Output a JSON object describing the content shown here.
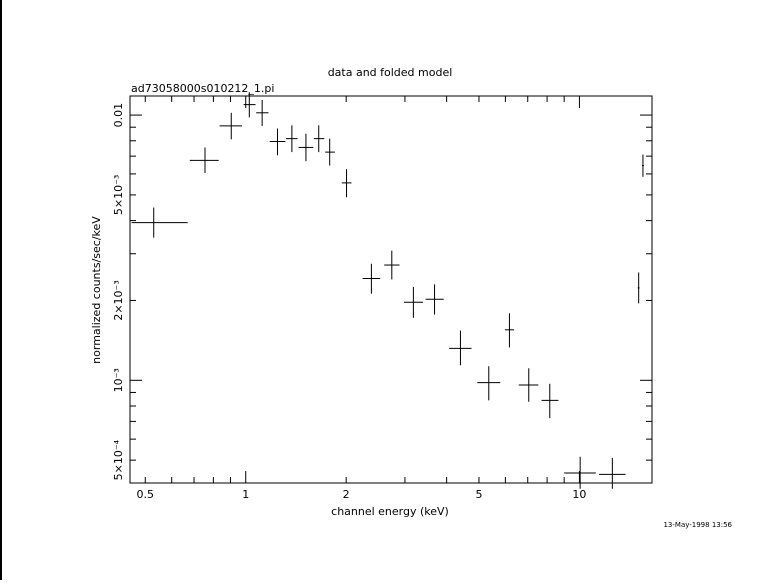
{
  "chart_data": {
    "type": "scatter",
    "title": "data and folded model",
    "subtitle": "ad73058000s010212_1.pi",
    "xlabel": "channel energy (keV)",
    "ylabel": "normalized counts/sec/keV",
    "timestamp": "13-May-1998 13:56",
    "x_scale": "log",
    "y_scale": "log",
    "xlim": [
      0.45,
      16.5
    ],
    "ylim": [
      0.00041,
      0.0118
    ],
    "x_ticks": [
      {
        "value": 0.5,
        "label": "0.5"
      },
      {
        "value": 1,
        "label": "1"
      },
      {
        "value": 2,
        "label": "2"
      },
      {
        "value": 5,
        "label": "5"
      },
      {
        "value": 10,
        "label": "10"
      }
    ],
    "y_ticks": [
      {
        "value": 0.01,
        "label": "0.01"
      },
      {
        "value": 0.005,
        "label": "5×10⁻³"
      },
      {
        "value": 0.002,
        "label": "2×10⁻³"
      },
      {
        "value": 0.001,
        "label": "10⁻³"
      },
      {
        "value": 0.0005,
        "label": "5×10⁻⁴"
      }
    ],
    "series": [
      {
        "color": "#000000",
        "points": [
          {
            "x": 0.53,
            "xlo": 0.455,
            "xhi": 0.67,
            "y": 0.00393,
            "ylo": 0.00345,
            "yhi": 0.00448
          },
          {
            "x": 0.755,
            "xlo": 0.68,
            "xhi": 0.83,
            "y": 0.00675,
            "ylo": 0.00605,
            "yhi": 0.00755
          },
          {
            "x": 0.905,
            "xlo": 0.835,
            "xhi": 0.975,
            "y": 0.0091,
            "ylo": 0.0081,
            "yhi": 0.0102
          },
          {
            "x": 1.025,
            "xlo": 0.985,
            "xhi": 1.07,
            "y": 0.01095,
            "ylo": 0.0098,
            "yhi": 0.0122
          },
          {
            "x": 1.12,
            "xlo": 1.075,
            "xhi": 1.17,
            "y": 0.0102,
            "ylo": 0.0091,
            "yhi": 0.0114
          },
          {
            "x": 1.245,
            "xlo": 1.18,
            "xhi": 1.315,
            "y": 0.00795,
            "ylo": 0.00705,
            "yhi": 0.0089
          },
          {
            "x": 1.375,
            "xlo": 1.32,
            "xhi": 1.43,
            "y": 0.00815,
            "ylo": 0.00725,
            "yhi": 0.00915
          },
          {
            "x": 1.515,
            "xlo": 1.44,
            "xhi": 1.595,
            "y": 0.00755,
            "ylo": 0.0067,
            "yhi": 0.0085
          },
          {
            "x": 1.655,
            "xlo": 1.6,
            "xhi": 1.72,
            "y": 0.00815,
            "ylo": 0.00725,
            "yhi": 0.00915
          },
          {
            "x": 1.785,
            "xlo": 1.73,
            "xhi": 1.85,
            "y": 0.00725,
            "ylo": 0.00645,
            "yhi": 0.00815
          },
          {
            "x": 2.005,
            "xlo": 1.94,
            "xhi": 2.075,
            "y": 0.00555,
            "ylo": 0.0049,
            "yhi": 0.00625
          },
          {
            "x": 2.38,
            "xlo": 2.24,
            "xhi": 2.53,
            "y": 0.00242,
            "ylo": 0.00212,
            "yhi": 0.00275
          },
          {
            "x": 2.74,
            "xlo": 2.6,
            "xhi": 2.89,
            "y": 0.00272,
            "ylo": 0.0024,
            "yhi": 0.00308
          },
          {
            "x": 3.18,
            "xlo": 2.98,
            "xhi": 3.4,
            "y": 0.00197,
            "ylo": 0.00172,
            "yhi": 0.00225
          },
          {
            "x": 3.68,
            "xlo": 3.46,
            "xhi": 3.92,
            "y": 0.00202,
            "ylo": 0.00177,
            "yhi": 0.0023
          },
          {
            "x": 4.4,
            "xlo": 4.07,
            "xhi": 4.75,
            "y": 0.00132,
            "ylo": 0.00114,
            "yhi": 0.00154
          },
          {
            "x": 5.35,
            "xlo": 4.94,
            "xhi": 5.79,
            "y": 0.00098,
            "ylo": 0.00084,
            "yhi": 0.00113
          },
          {
            "x": 6.17,
            "xlo": 5.98,
            "xhi": 6.37,
            "y": 0.00155,
            "ylo": 0.00133,
            "yhi": 0.00179
          },
          {
            "x": 7.05,
            "xlo": 6.58,
            "xhi": 7.53,
            "y": 0.00096,
            "ylo": 0.00083,
            "yhi": 0.00111
          },
          {
            "x": 8.15,
            "xlo": 7.7,
            "xhi": 8.65,
            "y": 0.00084,
            "ylo": 0.00072,
            "yhi": 0.00097
          },
          {
            "x": 10.05,
            "xlo": 9.0,
            "xhi": 11.2,
            "y": 0.000447,
            "ylo": 0.00039,
            "yhi": 0.000515
          },
          {
            "x": 12.55,
            "xlo": 11.45,
            "xhi": 13.75,
            "y": 0.000442,
            "ylo": 0.00039,
            "yhi": 0.00051
          },
          {
            "x": 15.05,
            "xlo": 14.95,
            "xhi": 15.15,
            "y": 0.00223,
            "ylo": 0.00195,
            "yhi": 0.00255
          },
          {
            "x": 15.5,
            "xlo": 15.4,
            "xhi": 15.6,
            "y": 0.00645,
            "ylo": 0.00585,
            "yhi": 0.0071
          }
        ]
      }
    ]
  }
}
